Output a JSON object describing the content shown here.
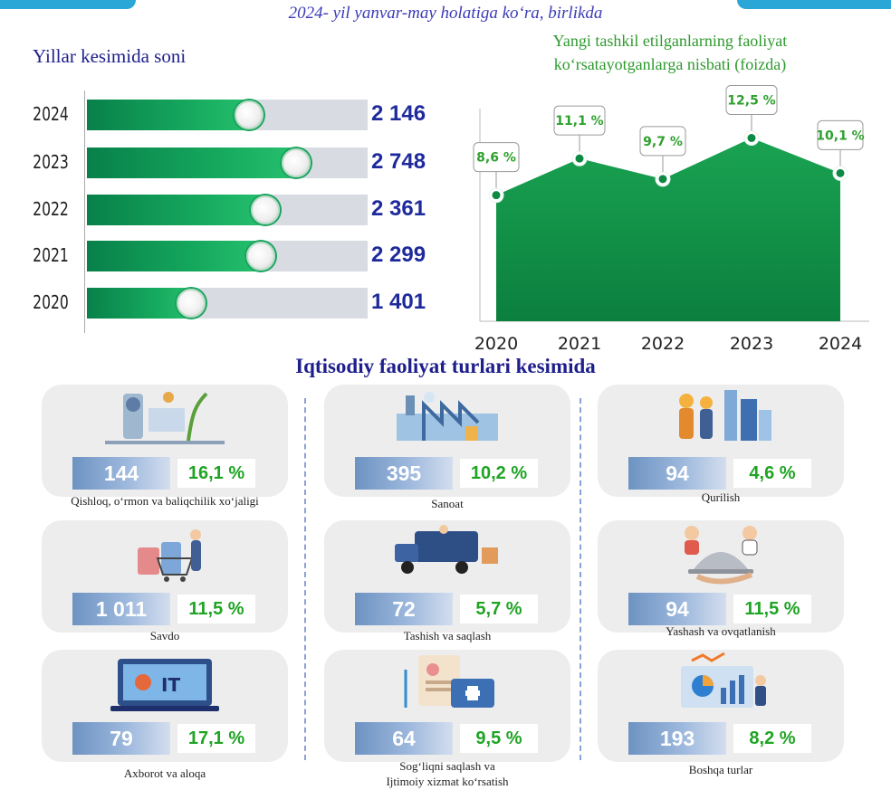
{
  "header": {
    "subtitle": "2024- yil yanvar-may holatiga koʻra, birlikda"
  },
  "colors": {
    "accent_blue": "#2aa7d6",
    "bar_green": "#15a85d",
    "area_green": "#1aa352",
    "title_navy": "#1e1e8c",
    "pct_green": "#1fa424"
  },
  "chart_data": [
    {
      "type": "bar",
      "orientation": "horizontal",
      "title": "Yillar kesimida soni",
      "categories": [
        "2024",
        "2023",
        "2022",
        "2021",
        "2020"
      ],
      "values": [
        2146,
        2748,
        2361,
        2299,
        1401
      ],
      "value_labels": [
        "2 146",
        "2 748",
        "2 361",
        "2 299",
        "1 401"
      ],
      "xlim": [
        0,
        3600
      ]
    },
    {
      "type": "area",
      "title": "Yangi tashkil etilganlarning faoliyat koʻrsatayotganlarga nisbati (foizda)",
      "title_lines": [
        "Yangi tashkil etilganlarning faoliyat",
        "koʻrsatayotganlarga nisbati (foizda)"
      ],
      "x": [
        "2020",
        "2021",
        "2022",
        "2023",
        "2024"
      ],
      "values": [
        8.6,
        11.1,
        9.7,
        12.5,
        10.1
      ],
      "value_labels": [
        "8,6 %",
        "11,1 %",
        "9,7 %",
        "12,5 %",
        "10,1 %"
      ],
      "ylim": [
        0,
        20
      ]
    }
  ],
  "categories_section": {
    "title": "Iqtisodiy faoliyat turlari kesimida",
    "cards": [
      {
        "count": "144",
        "pct": "16,1 %",
        "label_lines": [
          "Qishloq, oʻrmon va baliqchilik xoʻjaligi"
        ],
        "icon": "agriculture-icon"
      },
      {
        "count": "1 011",
        "pct": "11,5 %",
        "label_lines": [
          "Savdo"
        ],
        "icon": "shopping-icon"
      },
      {
        "count": "79",
        "pct": "17,1 %",
        "label_lines": [
          "Axborot va aloqa"
        ],
        "icon": "it-laptop-icon"
      },
      {
        "count": "395",
        "pct": "10,2 %",
        "label_lines": [
          "Sanoat"
        ],
        "icon": "factory-icon"
      },
      {
        "count": "72",
        "pct": "5,7 %",
        "label_lines": [
          "Tashish va saqlash"
        ],
        "icon": "truck-icon"
      },
      {
        "count": "64",
        "pct": "9,5 %",
        "label_lines": [
          "Sogʻliqni saqlash va",
          "Ijtimoiy xizmat koʻrsatish"
        ],
        "icon": "medical-icon"
      },
      {
        "count": "94",
        "pct": "4,6 %",
        "label_lines": [
          "Qurilish"
        ],
        "icon": "construction-icon"
      },
      {
        "count": "94",
        "pct": "11,5 %",
        "label_lines": [
          "Yashash va ovqatlanish"
        ],
        "icon": "catering-icon"
      },
      {
        "count": "193",
        "pct": "8,2 %",
        "label_lines": [
          "Boshqa turlar"
        ],
        "icon": "analytics-icon"
      }
    ]
  }
}
